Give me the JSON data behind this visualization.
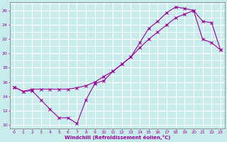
{
  "xlabel": "Windchill (Refroidissement éolien,°C)",
  "xlim": [
    -0.5,
    23.5
  ],
  "ylim": [
    9.5,
    27.2
  ],
  "xticks": [
    0,
    1,
    2,
    3,
    4,
    5,
    6,
    7,
    8,
    9,
    10,
    11,
    12,
    13,
    14,
    15,
    16,
    17,
    18,
    19,
    20,
    21,
    22,
    23
  ],
  "yticks": [
    10,
    12,
    14,
    16,
    18,
    20,
    22,
    24,
    26
  ],
  "bg_color": "#c8ecec",
  "grid_color": "#ffffff",
  "line_color": "#990099",
  "line1_x": [
    0,
    1,
    2,
    3,
    4,
    5,
    6,
    7,
    8,
    9,
    10,
    11,
    12,
    13,
    14,
    15,
    16,
    17,
    18,
    19,
    20,
    21,
    22,
    23
  ],
  "line1_y": [
    15.3,
    14.7,
    14.8,
    13.5,
    12.2,
    11.0,
    11.0,
    10.2,
    13.5,
    15.8,
    16.2,
    17.5,
    18.5,
    19.5,
    21.5,
    23.5,
    24.5,
    25.7,
    26.5,
    26.3,
    26.0,
    24.5,
    24.3,
    20.5
  ],
  "line2_x": [
    0,
    1,
    2,
    3,
    4,
    5,
    6,
    7,
    8,
    9,
    10,
    11,
    12,
    13,
    14,
    15,
    16,
    17,
    18,
    19,
    20,
    21,
    22,
    23
  ],
  "line2_y": [
    15.3,
    14.7,
    15.0,
    15.0,
    15.0,
    15.0,
    15.0,
    15.2,
    15.5,
    16.0,
    16.8,
    17.5,
    18.5,
    19.5,
    20.8,
    22.0,
    23.0,
    24.0,
    25.0,
    25.5,
    26.0,
    22.0,
    21.5,
    20.5
  ]
}
